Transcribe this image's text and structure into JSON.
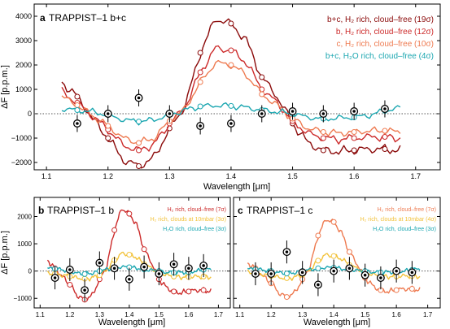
{
  "colors": {
    "h2_cloudfree_19": "#8b0a0a",
    "h2_cloudfree_12": "#cc2a2a",
    "c_h2_cloudfree_10": "#ee7a50",
    "h2o_cloudfree_4": "#1aa6b0",
    "h2_clouds_10mbar": "#f2c23a",
    "data_point": "#000000"
  },
  "chart_data": [
    {
      "panel_letter": "a",
      "title": "TRAPPIST–1 b+c",
      "type": "line",
      "xlabel": "Wavelength [μm]",
      "ylabel": "ΔF [p.p.m.]",
      "xlim": [
        1.08,
        1.74
      ],
      "ylim": [
        -2300,
        4500
      ],
      "xticks": [
        1.1,
        1.2,
        1.3,
        1.4,
        1.5,
        1.6,
        1.7
      ],
      "yticks": [
        -2000,
        -1000,
        0,
        1000,
        2000,
        3000,
        4000
      ],
      "ytick_labels": [
        "−2000",
        "−1000",
        "0",
        "1000",
        "2000",
        "3000",
        "4000"
      ],
      "xtick_labels": [
        "1.1",
        "1.2",
        "1.3",
        "1.4",
        "1.5",
        "1.6",
        "1.7"
      ],
      "legend_position": "top-right",
      "zero_line": true,
      "series": [
        {
          "name": "b+c, H₂ rich, cloud–free (19σ)",
          "color": "#8b0a0a",
          "x": [
            1.125,
            1.15,
            1.175,
            1.2,
            1.225,
            1.25,
            1.275,
            1.3,
            1.325,
            1.35,
            1.375,
            1.4,
            1.425,
            1.45,
            1.475,
            1.5,
            1.525,
            1.55,
            1.575,
            1.6,
            1.625,
            1.65,
            1.675
          ],
          "y": [
            1300,
            700,
            -200,
            -1000,
            -1900,
            -2150,
            -1800,
            -600,
            300,
            2500,
            3900,
            3700,
            3000,
            1500,
            700,
            -400,
            -1200,
            -1500,
            -1550,
            -1500,
            -1450,
            -1450,
            -1500
          ]
        },
        {
          "name": "b, H₂ rich, cloud–free (12σ)",
          "color": "#cc2a2a",
          "x": [
            1.125,
            1.15,
            1.175,
            1.2,
            1.225,
            1.25,
            1.275,
            1.3,
            1.325,
            1.35,
            1.375,
            1.4,
            1.425,
            1.45,
            1.475,
            1.5,
            1.525,
            1.55,
            1.575,
            1.6,
            1.625,
            1.65,
            1.675
          ],
          "y": [
            900,
            450,
            -100,
            -650,
            -1300,
            -1500,
            -1250,
            -400,
            250,
            1700,
            2700,
            2600,
            2100,
            1000,
            450,
            -300,
            -800,
            -1000,
            -1050,
            -1000,
            -950,
            -950,
            -1000
          ]
        },
        {
          "name": "c, H₂ rich, cloud–free (10σ)",
          "color": "#ee7a50",
          "x": [
            1.125,
            1.15,
            1.175,
            1.2,
            1.225,
            1.25,
            1.275,
            1.3,
            1.325,
            1.35,
            1.375,
            1.4,
            1.425,
            1.45,
            1.475,
            1.5,
            1.525,
            1.55,
            1.575,
            1.6,
            1.625,
            1.65,
            1.675
          ],
          "y": [
            700,
            350,
            -80,
            -500,
            -1000,
            -1200,
            -1000,
            -300,
            200,
            1300,
            2100,
            2000,
            1600,
            800,
            350,
            -200,
            -600,
            -750,
            -800,
            -750,
            -700,
            -700,
            -750
          ]
        },
        {
          "name": "b+c, H₂O rich, cloud–free (4σ)",
          "color": "#1aa6b0",
          "x": [
            1.125,
            1.15,
            1.175,
            1.2,
            1.225,
            1.25,
            1.275,
            1.3,
            1.325,
            1.35,
            1.375,
            1.4,
            1.425,
            1.45,
            1.475,
            1.5,
            1.525,
            1.55,
            1.575,
            1.6,
            1.625,
            1.65,
            1.675
          ],
          "y": [
            200,
            150,
            80,
            -50,
            -250,
            -320,
            -250,
            -50,
            150,
            300,
            340,
            320,
            250,
            150,
            80,
            0,
            -150,
            -200,
            -180,
            -150,
            -60,
            120,
            250
          ]
        }
      ],
      "points": {
        "x": [
          1.15,
          1.2,
          1.25,
          1.3,
          1.35,
          1.4,
          1.45,
          1.5,
          1.55,
          1.6,
          1.65
        ],
        "y": [
          -400,
          0,
          650,
          0,
          -500,
          -400,
          0,
          100,
          0,
          100,
          200
        ],
        "err": [
          350,
          350,
          350,
          350,
          350,
          350,
          350,
          350,
          350,
          350,
          350
        ]
      }
    },
    {
      "panel_letter": "b",
      "title": "TRAPPIST–1 b",
      "type": "line",
      "xlabel": "Wavelength [μm]",
      "ylabel": "ΔF [p.p.m.]",
      "xlim": [
        1.08,
        1.74
      ],
      "ylim": [
        -1350,
        2700
      ],
      "xticks": [
        1.1,
        1.2,
        1.3,
        1.4,
        1.5,
        1.6,
        1.7
      ],
      "yticks": [
        -1000,
        0,
        1000,
        2000
      ],
      "ytick_labels": [
        "−1000",
        "0",
        "1000",
        "2000"
      ],
      "xtick_labels": [
        "1.1",
        "1.2",
        "1.3",
        "1.4",
        "1.5",
        "1.6",
        "1.7"
      ],
      "legend_position": "top-right",
      "zero_line": true,
      "series": [
        {
          "name": "H₂ rich, cloud–free (7σ)",
          "color": "#cc2a2a",
          "x": [
            1.125,
            1.15,
            1.175,
            1.2,
            1.225,
            1.25,
            1.275,
            1.3,
            1.325,
            1.35,
            1.375,
            1.4,
            1.425,
            1.45,
            1.475,
            1.5,
            1.525,
            1.55,
            1.575,
            1.6,
            1.625,
            1.65,
            1.675
          ],
          "y": [
            400,
            100,
            -200,
            -500,
            -900,
            -1050,
            -900,
            -300,
            200,
            1500,
            2300,
            2100,
            1700,
            800,
            300,
            -300,
            -600,
            -750,
            -800,
            -750,
            -700,
            -700,
            -750
          ]
        },
        {
          "name": "H₂ rich, clouds at 10mbar (3σ)",
          "color": "#f2c23a",
          "x": [
            1.125,
            1.15,
            1.175,
            1.2,
            1.225,
            1.25,
            1.275,
            1.3,
            1.325,
            1.35,
            1.375,
            1.4,
            1.425,
            1.45,
            1.475,
            1.5,
            1.525,
            1.55,
            1.575,
            1.6,
            1.625,
            1.65,
            1.675
          ],
          "y": [
            -100,
            -100,
            -150,
            -200,
            -250,
            -280,
            -250,
            -150,
            50,
            400,
            650,
            600,
            500,
            250,
            100,
            -50,
            -150,
            -200,
            -220,
            -220,
            -200,
            -200,
            -220
          ]
        },
        {
          "name": "H₂O rich, cloud–free (3σ)",
          "color": "#1aa6b0",
          "x": [
            1.125,
            1.15,
            1.175,
            1.2,
            1.225,
            1.25,
            1.275,
            1.3,
            1.325,
            1.35,
            1.375,
            1.4,
            1.425,
            1.45,
            1.475,
            1.5,
            1.525,
            1.55,
            1.575,
            1.6,
            1.625,
            1.65,
            1.675
          ],
          "y": [
            100,
            80,
            50,
            0,
            -80,
            -110,
            -80,
            0,
            60,
            120,
            150,
            140,
            110,
            60,
            30,
            0,
            -50,
            -60,
            -50,
            -40,
            0,
            50,
            80
          ]
        }
      ],
      "points": {
        "x": [
          1.15,
          1.2,
          1.25,
          1.3,
          1.35,
          1.4,
          1.45,
          1.5,
          1.55,
          1.6,
          1.65
        ],
        "y": [
          -250,
          50,
          -700,
          300,
          100,
          -300,
          150,
          -100,
          250,
          100,
          200
        ],
        "err": [
          420,
          420,
          420,
          420,
          420,
          420,
          420,
          420,
          420,
          420,
          420
        ]
      }
    },
    {
      "panel_letter": "c",
      "title": "TRAPPIST–1 c",
      "type": "line",
      "xlabel": "Wavelength [μm]",
      "ylabel": "",
      "xlim": [
        1.08,
        1.74
      ],
      "ylim": [
        -1350,
        2700
      ],
      "xticks": [
        1.1,
        1.2,
        1.3,
        1.4,
        1.5,
        1.6,
        1.7
      ],
      "yticks": [
        -1000,
        0,
        1000,
        2000
      ],
      "ytick_labels": [
        "",
        "",
        "",
        ""
      ],
      "xtick_labels": [
        "1.1",
        "1.2",
        "1.3",
        "1.4",
        "1.5",
        "1.6",
        "1.7"
      ],
      "legend_position": "top-right",
      "zero_line": true,
      "series": [
        {
          "name": "H₂ rich, cloud–free (7σ)",
          "color": "#ee7a50",
          "x": [
            1.125,
            1.15,
            1.175,
            1.2,
            1.225,
            1.25,
            1.275,
            1.3,
            1.325,
            1.35,
            1.375,
            1.4,
            1.425,
            1.45,
            1.475,
            1.5,
            1.525,
            1.55,
            1.575,
            1.6,
            1.625,
            1.65,
            1.675
          ],
          "y": [
            300,
            100,
            -200,
            -450,
            -800,
            -950,
            -800,
            -300,
            200,
            1300,
            1900,
            1800,
            1400,
            700,
            250,
            -250,
            -550,
            -700,
            -750,
            -700,
            -650,
            -650,
            -700
          ]
        },
        {
          "name": "H₂ rich, clouds at 10mbar (4σ)",
          "color": "#f2c23a",
          "x": [
            1.125,
            1.15,
            1.175,
            1.2,
            1.225,
            1.25,
            1.275,
            1.3,
            1.325,
            1.35,
            1.375,
            1.4,
            1.425,
            1.45,
            1.475,
            1.5,
            1.525,
            1.55,
            1.575,
            1.6,
            1.625,
            1.65,
            1.675
          ],
          "y": [
            -50,
            -80,
            -120,
            -180,
            -230,
            -260,
            -230,
            -130,
            60,
            380,
            600,
            550,
            450,
            220,
            90,
            -40,
            -130,
            -180,
            -200,
            -200,
            -180,
            -180,
            -200
          ]
        },
        {
          "name": "H₂O rich, cloud–free (3σ)",
          "color": "#1aa6b0",
          "x": [
            1.125,
            1.15,
            1.175,
            1.2,
            1.225,
            1.25,
            1.275,
            1.3,
            1.325,
            1.35,
            1.375,
            1.4,
            1.425,
            1.45,
            1.475,
            1.5,
            1.525,
            1.55,
            1.575,
            1.6,
            1.625,
            1.65,
            1.675
          ],
          "y": [
            80,
            60,
            40,
            0,
            -60,
            -90,
            -60,
            0,
            50,
            100,
            130,
            120,
            90,
            50,
            20,
            0,
            -40,
            -50,
            -40,
            -30,
            0,
            40,
            70
          ]
        }
      ],
      "points": {
        "x": [
          1.15,
          1.2,
          1.25,
          1.3,
          1.35,
          1.4,
          1.45,
          1.5,
          1.55,
          1.6,
          1.65
        ],
        "y": [
          -100,
          -100,
          700,
          -50,
          -500,
          0,
          100,
          -150,
          -250,
          0,
          -50
        ],
        "err": [
          420,
          420,
          420,
          420,
          420,
          420,
          420,
          420,
          420,
          420,
          420
        ]
      }
    }
  ]
}
